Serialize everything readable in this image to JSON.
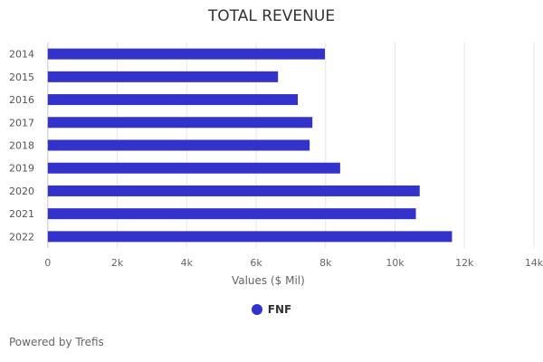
{
  "chart_data": {
    "type": "bar",
    "orientation": "horizontal",
    "title": "TOTAL REVENUE",
    "xlabel": "Values ($ Mil)",
    "ylabel": "",
    "categories": [
      "2014",
      "2015",
      "2016",
      "2017",
      "2018",
      "2019",
      "2020",
      "2021",
      "2022"
    ],
    "series": [
      {
        "name": "FNF",
        "values": [
          7980,
          6630,
          7200,
          7620,
          7540,
          8420,
          10710,
          10600,
          11640
        ]
      }
    ],
    "xlim": [
      0,
      14000
    ],
    "xticks": [
      "0",
      "2k",
      "4k",
      "6k",
      "8k",
      "10k",
      "12k",
      "14k"
    ],
    "grid": true,
    "legend_position": "bottom",
    "colors": {
      "bar": "#3333cc",
      "grid": "#e6e6e6"
    }
  },
  "footer": {
    "credit": "Powered by Trefis"
  }
}
